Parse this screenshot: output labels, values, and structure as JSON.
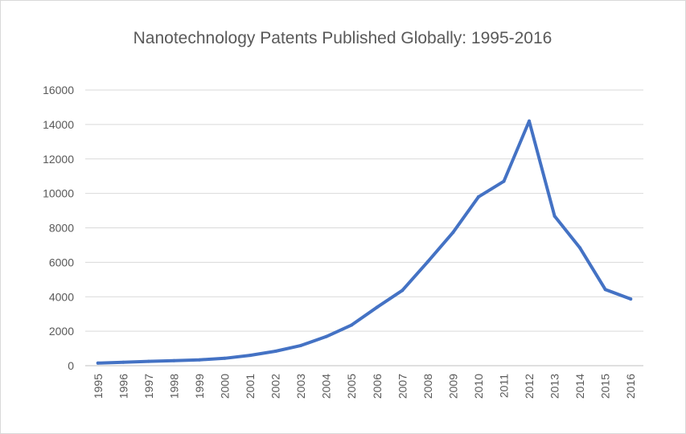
{
  "chart_data": {
    "type": "line",
    "title": "Nanotechnology Patents Published Globally: 1995-2016",
    "xlabel": "",
    "ylabel": "",
    "ylim": [
      0,
      16000
    ],
    "yticks": [
      0,
      2000,
      4000,
      6000,
      8000,
      10000,
      12000,
      14000,
      16000
    ],
    "grid": true,
    "legend": "none",
    "categories": [
      "1995",
      "1996",
      "1997",
      "1998",
      "1999",
      "2000",
      "2001",
      "2002",
      "2003",
      "2004",
      "2005",
      "2006",
      "2007",
      "2008",
      "2009",
      "2010",
      "2011",
      "2012",
      "2013",
      "2014",
      "2015",
      "2016"
    ],
    "series": [
      {
        "name": "Patents",
        "color": "#4472c4",
        "values": [
          150,
          200,
          250,
          290,
          340,
          430,
          600,
          840,
          1170,
          1690,
          2360,
          3390,
          4370,
          6030,
          7740,
          9800,
          10700,
          14200,
          8680,
          6840,
          4420,
          3870
        ]
      }
    ]
  }
}
